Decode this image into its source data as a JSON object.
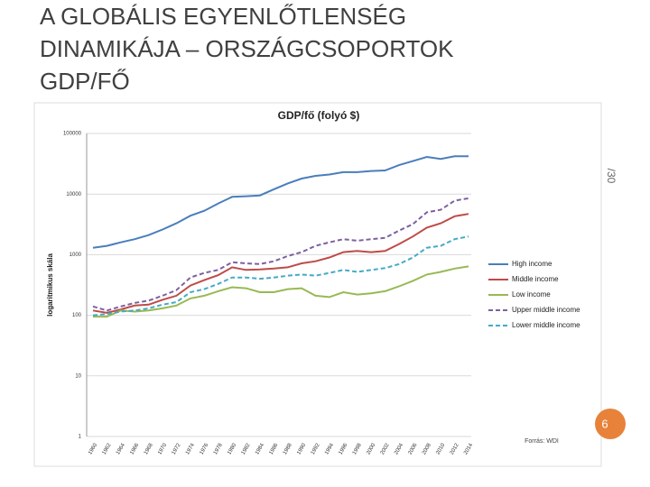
{
  "slide": {
    "title_lines": [
      "A GLOBÁLIS EGYENLŐTLENSÉG",
      "DINAMIKÁJA – ORSZÁGCSOPORTOK",
      "GDP/FŐ"
    ],
    "side_label": "/30",
    "page_number": "6"
  },
  "chart_data": {
    "type": "line",
    "title": "GDP/fő (folyó $)",
    "y_label": "logaritmikus skála",
    "source": "Forrás: WDI",
    "log_scale": true,
    "grid": true,
    "legend": "right",
    "x": [
      1960,
      1962,
      1964,
      1966,
      1968,
      1970,
      1972,
      1974,
      1976,
      1978,
      1980,
      1982,
      1984,
      1986,
      1988,
      1990,
      1992,
      1994,
      1996,
      1998,
      2000,
      2002,
      2004,
      2006,
      2008,
      2010,
      2012,
      2014
    ],
    "xlim": [
      1960,
      2014
    ],
    "ylim": [
      1,
      100000
    ],
    "yticks": [
      1,
      10,
      100,
      1000,
      10000,
      100000
    ],
    "series": [
      {
        "name": "High income",
        "color": "#4a7ebb",
        "dashed": false,
        "values": [
          1300,
          1400,
          1600,
          1800,
          2100,
          2600,
          3300,
          4400,
          5300,
          7000,
          9000,
          9200,
          9500,
          12000,
          15000,
          18000,
          20000,
          21000,
          23000,
          23000,
          24000,
          24500,
          30000,
          35000,
          41000,
          38000,
          42000,
          42000
        ]
      },
      {
        "name": "Middle income",
        "color": "#be4b48",
        "dashed": false,
        "values": [
          120,
          110,
          125,
          145,
          150,
          180,
          210,
          310,
          380,
          460,
          620,
          560,
          570,
          590,
          620,
          720,
          780,
          900,
          1100,
          1150,
          1100,
          1150,
          1500,
          2000,
          2800,
          3300,
          4300,
          4700
        ]
      },
      {
        "name": "Low income",
        "color": "#98b954",
        "dashed": false,
        "values": [
          95,
          95,
          120,
          115,
          120,
          130,
          145,
          190,
          210,
          250,
          290,
          280,
          240,
          240,
          270,
          280,
          210,
          200,
          240,
          220,
          230,
          250,
          300,
          370,
          470,
          520,
          590,
          640
        ]
      },
      {
        "name": "Upper middle income",
        "color": "#7d60a0",
        "dashed": true,
        "values": [
          140,
          120,
          140,
          160,
          175,
          210,
          260,
          420,
          500,
          560,
          750,
          720,
          700,
          780,
          950,
          1100,
          1400,
          1600,
          1800,
          1700,
          1800,
          1900,
          2500,
          3200,
          5000,
          5500,
          7800,
          8500
        ]
      },
      {
        "name": "Lower middle income",
        "color": "#46aac5",
        "dashed": true,
        "values": [
          100,
          105,
          115,
          120,
          130,
          150,
          165,
          240,
          270,
          330,
          420,
          420,
          400,
          420,
          450,
          470,
          450,
          500,
          560,
          520,
          560,
          600,
          700,
          900,
          1300,
          1400,
          1800,
          2000
        ]
      }
    ]
  }
}
